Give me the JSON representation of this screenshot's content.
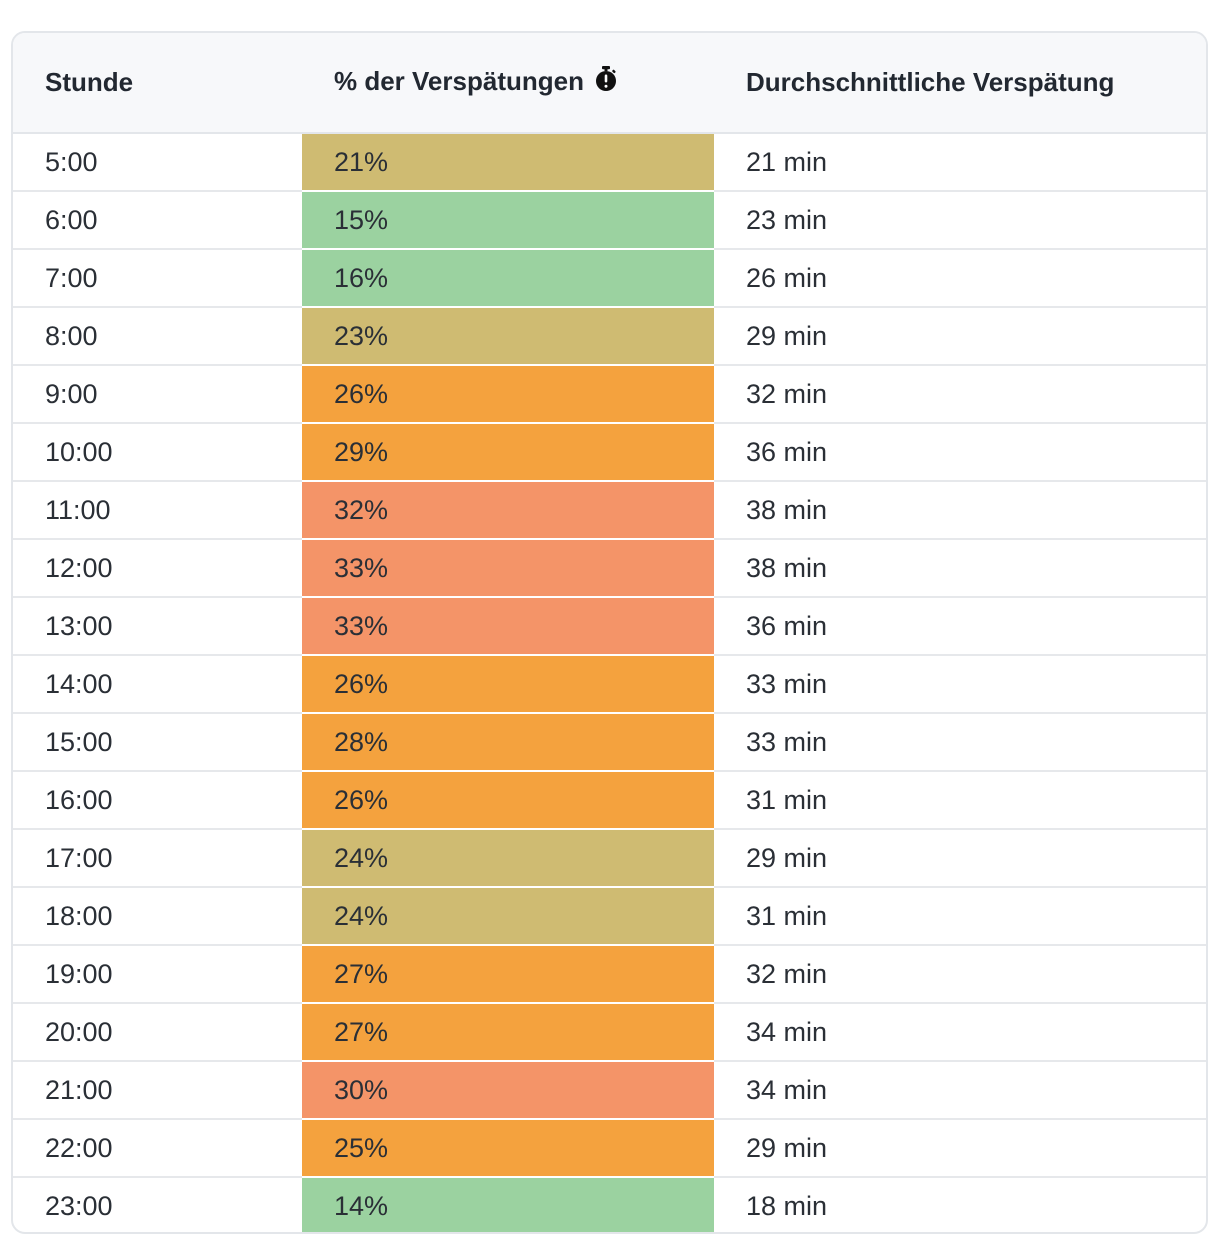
{
  "table": {
    "headers": {
      "hour": "Stunde",
      "pct_delays": "% der Verspätungen",
      "avg_delay": "Durchschnittliche Verspätung"
    },
    "header_icon": "stopwatch-icon",
    "colors": {
      "low": "#9bd2a0",
      "medium": "#cfbb72",
      "high": "#f4a23e",
      "very_high": "#f49468"
    },
    "rows": [
      {
        "hour": "5:00",
        "pct": "21%",
        "avg": "21 min",
        "level": "medium"
      },
      {
        "hour": "6:00",
        "pct": "15%",
        "avg": "23 min",
        "level": "low"
      },
      {
        "hour": "7:00",
        "pct": "16%",
        "avg": "26 min",
        "level": "low"
      },
      {
        "hour": "8:00",
        "pct": "23%",
        "avg": "29 min",
        "level": "medium"
      },
      {
        "hour": "9:00",
        "pct": "26%",
        "avg": "32 min",
        "level": "high"
      },
      {
        "hour": "10:00",
        "pct": "29%",
        "avg": "36 min",
        "level": "high"
      },
      {
        "hour": "11:00",
        "pct": "32%",
        "avg": "38 min",
        "level": "very_high"
      },
      {
        "hour": "12:00",
        "pct": "33%",
        "avg": "38 min",
        "level": "very_high"
      },
      {
        "hour": "13:00",
        "pct": "33%",
        "avg": "36 min",
        "level": "very_high"
      },
      {
        "hour": "14:00",
        "pct": "26%",
        "avg": "33 min",
        "level": "high"
      },
      {
        "hour": "15:00",
        "pct": "28%",
        "avg": "33 min",
        "level": "high"
      },
      {
        "hour": "16:00",
        "pct": "26%",
        "avg": "31 min",
        "level": "high"
      },
      {
        "hour": "17:00",
        "pct": "24%",
        "avg": "29 min",
        "level": "medium"
      },
      {
        "hour": "18:00",
        "pct": "24%",
        "avg": "31 min",
        "level": "medium"
      },
      {
        "hour": "19:00",
        "pct": "27%",
        "avg": "32 min",
        "level": "high"
      },
      {
        "hour": "20:00",
        "pct": "27%",
        "avg": "34 min",
        "level": "high"
      },
      {
        "hour": "21:00",
        "pct": "30%",
        "avg": "34 min",
        "level": "very_high"
      },
      {
        "hour": "22:00",
        "pct": "25%",
        "avg": "29 min",
        "level": "high"
      },
      {
        "hour": "23:00",
        "pct": "14%",
        "avg": "18 min",
        "level": "low"
      }
    ]
  }
}
